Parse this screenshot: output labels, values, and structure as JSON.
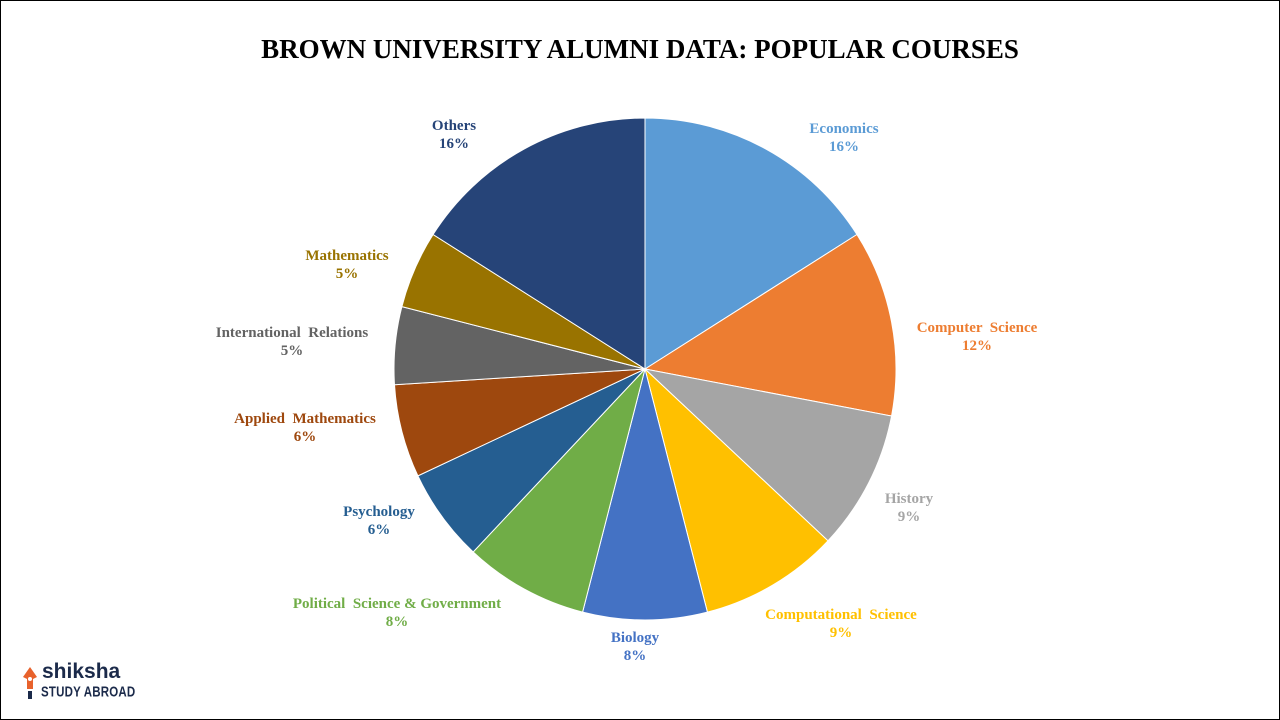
{
  "chart_data": {
    "type": "pie",
    "title": "BROWN UNIVERSITY ALUMNI DATA: POPULAR COURSES",
    "slices": [
      {
        "label": "Economics",
        "value": 16,
        "value_label": "16%",
        "color": "#5b9bd5",
        "label_color": "#5b9bd5"
      },
      {
        "label": "Computer  Science",
        "value": 12,
        "value_label": "12%",
        "color": "#ed7d31",
        "label_color": "#ed7d31"
      },
      {
        "label": "History",
        "value": 9,
        "value_label": "9%",
        "color": "#a5a5a5",
        "label_color": "#a5a5a5"
      },
      {
        "label": "Computational  Science",
        "value": 9,
        "value_label": "9%",
        "color": "#ffc000",
        "label_color": "#ffc000"
      },
      {
        "label": "Biology",
        "value": 8,
        "value_label": "8%",
        "color": "#4472c4",
        "label_color": "#4472c4"
      },
      {
        "label": "Political  Science & Government",
        "value": 8,
        "value_label": "8%",
        "color": "#70ad47",
        "label_color": "#70ad47"
      },
      {
        "label": "Psychology",
        "value": 6,
        "value_label": "6%",
        "color": "#255e91",
        "label_color": "#255e91"
      },
      {
        "label": "Applied  Mathematics",
        "value": 6,
        "value_label": "6%",
        "color": "#9e480e",
        "label_color": "#9e480e"
      },
      {
        "label": "International  Relations",
        "value": 5,
        "value_label": "5%",
        "color": "#636363",
        "label_color": "#636363"
      },
      {
        "label": "Mathematics",
        "value": 5,
        "value_label": "5%",
        "color": "#997300",
        "label_color": "#997300"
      },
      {
        "label": "Others",
        "value": 16,
        "value_label": "16%",
        "color": "#264478",
        "label_color": "#264478"
      }
    ]
  },
  "logo": {
    "brand": "shiksha",
    "tagline": "STUDY ABROAD",
    "icon": "pen-nib-icon"
  }
}
